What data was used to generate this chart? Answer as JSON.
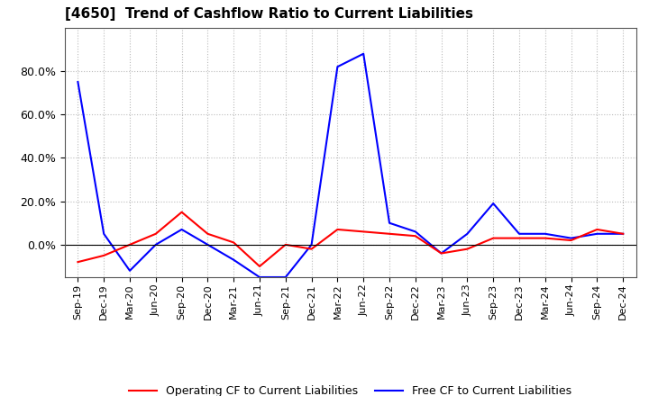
{
  "title": "[4650]  Trend of Cashflow Ratio to Current Liabilities",
  "x_labels": [
    "Sep-19",
    "Dec-19",
    "Mar-20",
    "Jun-20",
    "Sep-20",
    "Dec-20",
    "Mar-21",
    "Jun-21",
    "Sep-21",
    "Dec-21",
    "Mar-22",
    "Jun-22",
    "Sep-22",
    "Dec-22",
    "Mar-23",
    "Jun-23",
    "Sep-23",
    "Dec-23",
    "Mar-24",
    "Jun-24",
    "Sep-24",
    "Dec-24"
  ],
  "operating_cf": [
    -0.08,
    -0.05,
    0.0,
    0.05,
    0.15,
    0.05,
    0.01,
    -0.1,
    0.0,
    -0.02,
    0.07,
    0.06,
    0.05,
    0.04,
    -0.04,
    -0.02,
    0.03,
    0.03,
    0.03,
    0.02,
    0.07,
    0.05
  ],
  "free_cf": [
    0.75,
    0.05,
    -0.12,
    0.0,
    0.07,
    0.0,
    -0.07,
    -0.15,
    -0.15,
    0.0,
    0.82,
    0.88,
    0.1,
    0.06,
    -0.04,
    0.05,
    0.19,
    0.05,
    0.05,
    0.03,
    0.05,
    0.05
  ],
  "operating_color": "#ff0000",
  "free_color": "#0000ff",
  "ylim_min": -0.15,
  "ylim_max": 1.0,
  "yticks": [
    0.0,
    0.2,
    0.4,
    0.6,
    0.8
  ],
  "background_color": "#ffffff",
  "grid_color": "#bbbbbb",
  "title_fontsize": 11,
  "legend_fontsize": 9
}
